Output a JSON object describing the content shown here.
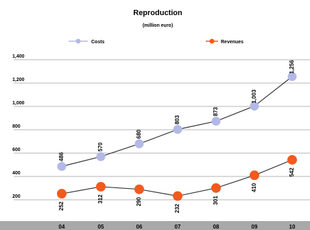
{
  "chart_data": {
    "type": "line",
    "title": "Reproduction",
    "subtitle": "(million euro)",
    "categories": [
      "04",
      "05",
      "06",
      "07",
      "08",
      "09",
      "10"
    ],
    "series": [
      {
        "name": "Costs",
        "color": "#b3b9e6",
        "values": [
          486,
          570,
          680,
          803,
          873,
          1003,
          1256
        ],
        "labels": [
          "486",
          "570",
          "680",
          "803",
          "873",
          "1,003",
          "1,256"
        ]
      },
      {
        "name": "Revenues",
        "color": "#f25a1e",
        "values": [
          252,
          312,
          290,
          232,
          301,
          410,
          542
        ],
        "labels": [
          "252",
          "312",
          "290",
          "232",
          "301",
          "410",
          "542"
        ]
      }
    ],
    "yticks": [
      "1,400",
      "1,200",
      "1,000",
      "800",
      "600",
      "400",
      "200"
    ],
    "ytick_values": [
      1400,
      1200,
      1000,
      800,
      600,
      400,
      200
    ],
    "ylim": [
      130,
      1430
    ],
    "grid": true,
    "legend_position": "top"
  }
}
